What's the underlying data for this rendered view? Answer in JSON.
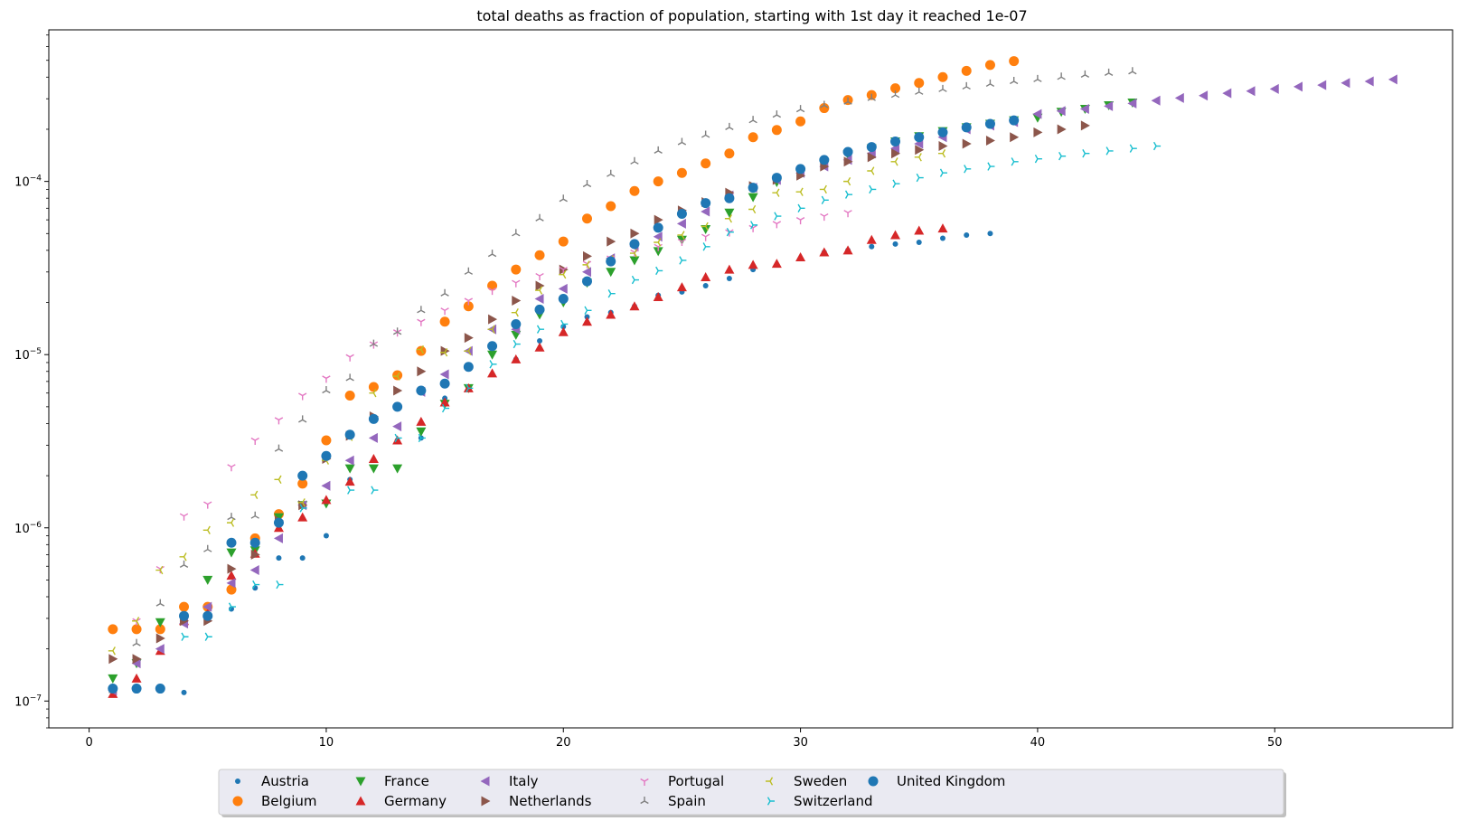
{
  "chart_data": {
    "type": "scatter",
    "title": "total deaths as fraction of population, starting with 1st day it reached 1e-07",
    "xlabel": "",
    "ylabel": "",
    "xlim": [
      -1.7,
      57.5
    ],
    "ylim": [
      7e-08,
      0.00075
    ],
    "yscale": "log",
    "grid": false,
    "legend_placement": "bottom-center",
    "x_ticks": [
      0,
      10,
      20,
      30,
      40,
      50
    ],
    "y_ticks": [
      {
        "value": 1e-07,
        "base": "10",
        "exp": "−7"
      },
      {
        "value": 1e-06,
        "base": "10",
        "exp": "−6"
      },
      {
        "value": 1e-05,
        "base": "10",
        "exp": "−5"
      },
      {
        "value": 0.0001,
        "base": "10",
        "exp": "−4"
      }
    ],
    "series": [
      {
        "name": "Austria",
        "color": "#1f77b4",
        "marker": "point",
        "x": [
          1,
          2,
          3,
          4,
          5,
          6,
          7,
          8,
          9,
          10,
          11,
          12,
          13,
          14,
          15,
          16,
          17,
          18,
          19,
          20,
          21,
          22,
          23,
          24,
          25,
          26,
          27,
          28,
          29,
          30,
          31,
          32,
          33,
          34,
          35,
          36,
          37,
          38
        ],
        "y": [
          1.15e-07,
          1.15e-07,
          1.15e-07,
          1.12e-07,
          3.1e-07,
          3.4e-07,
          4.5e-07,
          6.7e-07,
          6.7e-07,
          9e-07,
          1.9e-06,
          4.2e-06,
          3.2e-06,
          3.3e-06,
          5.6e-06,
          6.4e-06,
          7.7e-06,
          9.4e-06,
          1.2e-05,
          1.45e-05,
          1.65e-05,
          1.75e-05,
          1.9e-05,
          2.2e-05,
          2.3e-05,
          2.5e-05,
          2.75e-05,
          3.1e-05,
          3.3e-05,
          3.6e-05,
          3.9e-05,
          4e-05,
          4.2e-05,
          4.35e-05,
          4.45e-05,
          4.7e-05,
          4.9e-05,
          5e-05
        ]
      },
      {
        "name": "Belgium",
        "color": "#ff7f0e",
        "marker": "circle",
        "x": [
          1,
          2,
          3,
          4,
          5,
          6,
          7,
          8,
          9,
          10,
          11,
          12,
          13,
          14,
          15,
          16,
          17,
          18,
          19,
          20,
          21,
          22,
          23,
          24,
          25,
          26,
          27,
          28,
          29,
          30,
          31,
          32,
          33,
          34,
          35,
          36,
          37,
          38,
          39
        ],
        "y": [
          2.6e-07,
          2.6e-07,
          2.6e-07,
          3.5e-07,
          3.5e-07,
          4.4e-07,
          8.7e-07,
          1.2e-06,
          1.8e-06,
          3.2e-06,
          5.8e-06,
          6.5e-06,
          7.6e-06,
          1.05e-05,
          1.55e-05,
          1.9e-05,
          2.5e-05,
          3.1e-05,
          3.75e-05,
          4.5e-05,
          6.1e-05,
          7.2e-05,
          8.8e-05,
          0.0001,
          0.000112,
          0.000127,
          0.000145,
          0.00018,
          0.000198,
          0.000222,
          0.000265,
          0.000295,
          0.000315,
          0.000345,
          0.00037,
          0.0004,
          0.000435,
          0.00047,
          0.000495
        ]
      },
      {
        "name": "France",
        "color": "#2ca02c",
        "marker": "triangle-down",
        "x": [
          1,
          2,
          3,
          4,
          5,
          6,
          7,
          8,
          9,
          10,
          11,
          12,
          13,
          14,
          15,
          16,
          17,
          18,
          19,
          20,
          21,
          22,
          23,
          24,
          25,
          26,
          27,
          28,
          29,
          30,
          31,
          32,
          33,
          34,
          35,
          36,
          37,
          38,
          39,
          40,
          41,
          42,
          43,
          44
        ],
        "y": [
          1.35e-07,
          1.65e-07,
          2.85e-07,
          2.95e-07,
          5e-07,
          7.2e-07,
          7.4e-07,
          1.15e-06,
          1.35e-06,
          1.38e-06,
          2.2e-06,
          2.2e-06,
          2.2e-06,
          3.6e-06,
          5.2e-06,
          6.4e-06,
          1e-05,
          1.3e-05,
          1.7e-05,
          2e-05,
          2.6e-05,
          3e-05,
          3.5e-05,
          3.95e-05,
          4.6e-05,
          5.3e-05,
          6.6e-05,
          8.1e-05,
          9.9e-05,
          0.000112,
          0.000128,
          0.000143,
          0.000155,
          0.00017,
          0.000182,
          0.000195,
          0.000205,
          0.000215,
          0.000225,
          0.000233,
          0.000252,
          0.000262,
          0.000275,
          0.000285
        ]
      },
      {
        "name": "Germany",
        "color": "#d62728",
        "marker": "triangle-up",
        "x": [
          1,
          2,
          3,
          4,
          5,
          6,
          7,
          8,
          9,
          10,
          11,
          12,
          13,
          14,
          15,
          16,
          17,
          18,
          19,
          20,
          21,
          22,
          23,
          24,
          25,
          26,
          27,
          28,
          29,
          30,
          31,
          32,
          33,
          34,
          35,
          36
        ],
        "y": [
          1.1e-07,
          1.35e-07,
          1.95e-07,
          2.9e-07,
          3.2e-07,
          5.3e-07,
          7.1e-07,
          1e-06,
          1.15e-06,
          1.45e-06,
          1.85e-06,
          2.5e-06,
          3.2e-06,
          4.1e-06,
          5.3e-06,
          6.4e-06,
          7.8e-06,
          9.4e-06,
          1.1e-05,
          1.35e-05,
          1.55e-05,
          1.7e-05,
          1.9e-05,
          2.15e-05,
          2.45e-05,
          2.8e-05,
          3.1e-05,
          3.3e-05,
          3.35e-05,
          3.65e-05,
          3.9e-05,
          4e-05,
          4.6e-05,
          4.9e-05,
          5.2e-05,
          5.35e-05
        ]
      },
      {
        "name": "Italy",
        "color": "#9467bd",
        "marker": "triangle-left",
        "x": [
          1,
          2,
          3,
          4,
          5,
          6,
          7,
          8,
          9,
          10,
          11,
          12,
          13,
          14,
          15,
          16,
          17,
          18,
          19,
          20,
          21,
          22,
          23,
          24,
          25,
          26,
          27,
          28,
          29,
          30,
          31,
          32,
          33,
          34,
          35,
          36,
          37,
          38,
          39,
          40,
          41,
          42,
          43,
          44,
          45,
          46,
          47,
          48,
          49,
          50,
          51,
          52,
          53,
          54,
          55
        ],
        "y": [
          1.15e-07,
          1.65e-07,
          2e-07,
          2.8e-07,
          3.5e-07,
          4.8e-07,
          5.7e-07,
          8.7e-07,
          1.35e-06,
          1.75e-06,
          2.45e-06,
          3.3e-06,
          3.85e-06,
          6.1e-06,
          7.7e-06,
          1.05e-05,
          1.4e-05,
          1.4e-05,
          2.1e-05,
          2.4e-05,
          3e-05,
          3.6e-05,
          4.2e-05,
          4.8e-05,
          5.7e-05,
          6.7e-05,
          8.3e-05,
          9.2e-05,
          0.000102,
          0.000112,
          0.000122,
          0.000133,
          0.000145,
          0.000155,
          0.000165,
          0.00018,
          0.0002,
          0.00021,
          0.00022,
          0.000245,
          0.000255,
          0.000262,
          0.000272,
          0.000282,
          0.000293,
          0.000303,
          0.000313,
          0.000323,
          0.000332,
          0.000342,
          0.000352,
          0.00036,
          0.00037,
          0.000378,
          0.000388
        ]
      },
      {
        "name": "Netherlands",
        "color": "#8c564b",
        "marker": "triangle-right",
        "x": [
          1,
          2,
          3,
          4,
          5,
          6,
          7,
          8,
          9,
          10,
          11,
          12,
          13,
          14,
          15,
          16,
          17,
          18,
          19,
          20,
          21,
          22,
          23,
          24,
          25,
          26,
          27,
          28,
          29,
          30,
          31,
          32,
          33,
          34,
          35,
          36,
          37,
          38,
          39,
          40,
          41,
          42
        ],
        "y": [
          1.75e-07,
          1.75e-07,
          2.3e-07,
          2.9e-07,
          2.9e-07,
          5.8e-07,
          7e-07,
          1.1e-06,
          1.35e-06,
          2.5e-06,
          3.4e-06,
          4.4e-06,
          6.2e-06,
          8e-06,
          1.05e-05,
          1.25e-05,
          1.6e-05,
          2.05e-05,
          2.5e-05,
          3.1e-05,
          3.7e-05,
          4.5e-05,
          5e-05,
          6e-05,
          6.8e-05,
          7.6e-05,
          8.6e-05,
          9.4e-05,
          0.000102,
          0.000108,
          0.000122,
          0.00013,
          0.000138,
          0.000145,
          0.000152,
          0.00016,
          0.000165,
          0.000172,
          0.00018,
          0.000192,
          0.0002,
          0.00021
        ]
      },
      {
        "name": "Portugal",
        "color": "#e377c2",
        "marker": "tri-down",
        "x": [
          2,
          3,
          4,
          5,
          6,
          7,
          8,
          9,
          10,
          11,
          12,
          13,
          14,
          15,
          16,
          17,
          18,
          19,
          20,
          21,
          22,
          23,
          24,
          25,
          26,
          27,
          28,
          29,
          30,
          31,
          32
        ],
        "y": [
          2.9e-07,
          5.8e-07,
          1.17e-06,
          1.37e-06,
          2.25e-06,
          3.2e-06,
          4.2e-06,
          5.8e-06,
          7.3e-06,
          9.7e-06,
          1.15e-05,
          1.35e-05,
          1.55e-05,
          1.8e-05,
          2.05e-05,
          2.35e-05,
          2.6e-05,
          2.85e-05,
          3.1e-05,
          3.35e-05,
          3.6e-05,
          3.9e-05,
          4.2e-05,
          4.5e-05,
          4.8e-05,
          5.1e-05,
          5.4e-05,
          5.7e-05,
          6e-05,
          6.3e-05,
          6.6e-05
        ]
      },
      {
        "name": "Spain",
        "color": "#7f7f7f",
        "marker": "tri-up",
        "x": [
          1,
          2,
          3,
          4,
          5,
          6,
          7,
          8,
          9,
          10,
          11,
          12,
          13,
          14,
          15,
          16,
          17,
          18,
          19,
          20,
          21,
          22,
          23,
          24,
          25,
          26,
          27,
          28,
          29,
          30,
          31,
          32,
          33,
          34,
          35,
          36,
          37,
          38,
          39,
          40,
          41,
          42,
          43,
          44
        ],
        "y": [
          1.15e-07,
          2.15e-07,
          3.65e-07,
          6.1e-07,
          7.5e-07,
          1.15e-06,
          1.17e-06,
          2.85e-06,
          4.2e-06,
          6.2e-06,
          7.3e-06,
          1.15e-05,
          1.35e-05,
          1.8e-05,
          2.25e-05,
          3e-05,
          3.8e-05,
          5e-05,
          6.1e-05,
          7.9e-05,
          9.6e-05,
          0.00011,
          0.00013,
          0.00015,
          0.000168,
          0.000185,
          0.000205,
          0.000225,
          0.000242,
          0.00026,
          0.000275,
          0.000288,
          0.000302,
          0.000315,
          0.000328,
          0.00034,
          0.000352,
          0.000365,
          0.000378,
          0.000388,
          0.0004,
          0.000412,
          0.000422,
          0.00043
        ]
      },
      {
        "name": "Sweden",
        "color": "#bcbd22",
        "marker": "tri-left",
        "x": [
          1,
          2,
          3,
          4,
          5,
          6,
          7,
          8,
          9,
          10,
          11,
          12,
          13,
          14,
          15,
          16,
          17,
          18,
          19,
          20,
          21,
          22,
          23,
          24,
          25,
          26,
          27,
          28,
          29,
          30,
          31,
          32,
          33,
          34,
          35,
          36
        ],
        "y": [
          1.95e-07,
          2.9e-07,
          5.7e-07,
          6.8e-07,
          9.7e-07,
          1.07e-06,
          1.55e-06,
          1.9e-06,
          1.4e-06,
          2.45e-06,
          3.35e-06,
          6e-06,
          7.5e-06,
          1.07e-05,
          1.03e-05,
          1.05e-05,
          1.4e-05,
          1.75e-05,
          2.35e-05,
          2.9e-05,
          3.3e-05,
          3.55e-05,
          3.85e-05,
          4.45e-05,
          4.9e-05,
          5.5e-05,
          6.1e-05,
          6.9e-05,
          8.6e-05,
          8.7e-05,
          9e-05,
          0.0001,
          0.000115,
          0.00013,
          0.000138,
          0.000145
        ]
      },
      {
        "name": "Switzerland",
        "color": "#17becf",
        "marker": "tri-right",
        "x": [
          4,
          5,
          6,
          7,
          8,
          9,
          10,
          11,
          12,
          13,
          14,
          15,
          16,
          17,
          18,
          19,
          20,
          21,
          22,
          23,
          24,
          25,
          26,
          27,
          28,
          29,
          30,
          31,
          32,
          33,
          34,
          35,
          36,
          37,
          38,
          39,
          40,
          41,
          42,
          43,
          44,
          45
        ],
        "y": [
          2.35e-07,
          2.35e-07,
          3.5e-07,
          4.7e-07,
          4.7e-07,
          1.3e-06,
          2.6e-06,
          1.65e-06,
          1.65e-06,
          3.3e-06,
          3.3e-06,
          4.9e-06,
          6.4e-06,
          8.8e-06,
          1.15e-05,
          1.4e-05,
          1.5e-05,
          1.8e-05,
          2.25e-05,
          2.7e-05,
          3.05e-05,
          3.5e-05,
          4.2e-05,
          5.1e-05,
          5.6e-05,
          6.3e-05,
          7e-05,
          7.8e-05,
          8.4e-05,
          9e-05,
          9.7e-05,
          0.000105,
          0.000112,
          0.000118,
          0.000122,
          0.00013,
          0.000135,
          0.00014,
          0.000145,
          0.00015,
          0.000155,
          0.00016
        ]
      },
      {
        "name": "United Kingdom",
        "color": "#1f77b4",
        "marker": "circle",
        "x": [
          1,
          2,
          3,
          4,
          5,
          6,
          7,
          8,
          9,
          10,
          11,
          12,
          13,
          14,
          15,
          16,
          17,
          18,
          19,
          20,
          21,
          22,
          23,
          24,
          25,
          26,
          27,
          28,
          29,
          30,
          31,
          32,
          33,
          34,
          35,
          36,
          37,
          38,
          39
        ],
        "y": [
          1.18e-07,
          1.18e-07,
          1.18e-07,
          3.1e-07,
          3.1e-07,
          8.2e-07,
          8.2e-07,
          1.07e-06,
          2e-06,
          2.6e-06,
          3.45e-06,
          4.25e-06,
          5e-06,
          6.2e-06,
          6.8e-06,
          8.5e-06,
          1.12e-05,
          1.5e-05,
          1.82e-05,
          2.1e-05,
          2.65e-05,
          3.45e-05,
          4.35e-05,
          5.4e-05,
          6.5e-05,
          7.5e-05,
          8e-05,
          9.2e-05,
          0.000105,
          0.000118,
          0.000133,
          0.000148,
          0.000158,
          0.00017,
          0.00018,
          0.000192,
          0.000205,
          0.000215,
          0.000225
        ]
      }
    ]
  }
}
